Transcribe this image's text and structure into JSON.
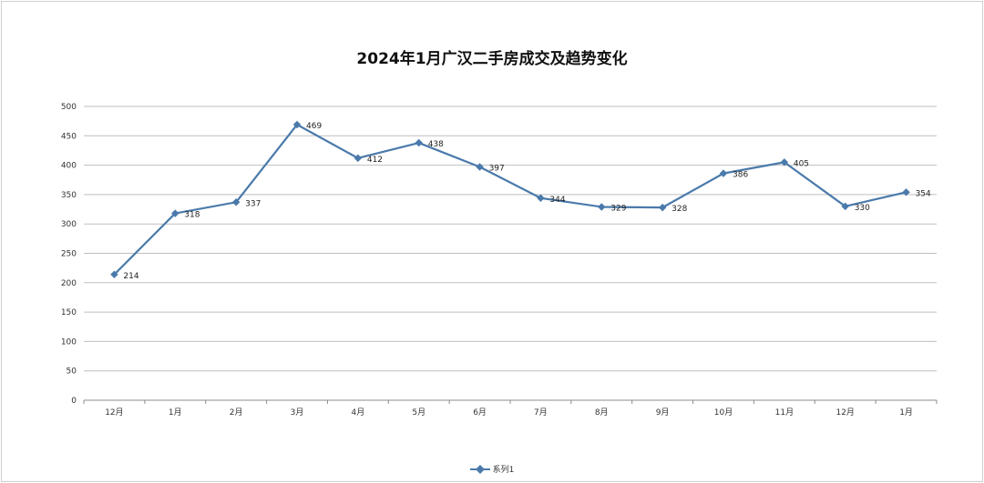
{
  "chart_data": {
    "type": "line",
    "title": "2024年1月广汉二手房成交及趋势变化",
    "categories": [
      "12月",
      "1月",
      "2月",
      "3月",
      "4月",
      "5月",
      "6月",
      "7月",
      "8月",
      "9月",
      "10月",
      "11月",
      "12月",
      "1月"
    ],
    "series": [
      {
        "name": "系列1",
        "values": [
          214,
          318,
          337,
          469,
          412,
          438,
          397,
          344,
          329,
          328,
          386,
          405,
          330,
          354
        ]
      }
    ],
    "ylim": [
      0,
      500
    ],
    "yticks": [
      0,
      50,
      100,
      150,
      200,
      250,
      300,
      350,
      400,
      450,
      500
    ],
    "grid": true,
    "legend": "bottom",
    "colors": {
      "line": "#4a7aab",
      "grid": "#bfbfbf",
      "axis": "#8c8c8c"
    }
  }
}
